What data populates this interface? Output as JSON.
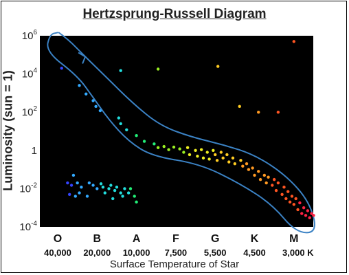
{
  "chart_data": {
    "type": "scatter",
    "title": "Hertzsprung-Russell Diagram",
    "xlabel": "Surface Temperature of Star",
    "ylabel": "Luminosity (sun = 1)",
    "y_scale": "log",
    "ylim": [
      0.0001,
      1000000
    ],
    "y_ticks": [
      {
        "value": 1000000,
        "base": "10",
        "exp": "6"
      },
      {
        "value": 10000,
        "base": "10",
        "exp": "4"
      },
      {
        "value": 100,
        "base": "10",
        "exp": "2"
      },
      {
        "value": 1,
        "base": "1",
        "exp": ""
      },
      {
        "value": 0.01,
        "base": "10",
        "exp": "-2"
      },
      {
        "value": 0.0001,
        "base": "10",
        "exp": "-4"
      }
    ],
    "spectral_classes": [
      {
        "label": "O",
        "temp": "40,000"
      },
      {
        "label": "B",
        "temp": "20,000"
      },
      {
        "label": "A",
        "temp": "10,000"
      },
      {
        "label": "F",
        "temp": "7,500"
      },
      {
        "label": "G",
        "temp": "5,500"
      },
      {
        "label": "K",
        "temp": "4,500"
      },
      {
        "label": "M",
        "temp": "3,000 K"
      }
    ],
    "class_scale": "spectral class position: O=0, B=1, A=2, F=3, G=4, K=5, M=6",
    "colors": {
      "background": "#000000",
      "outline": "#3b82c4",
      "star_palette": [
        "#3344ff",
        "#33aaff",
        "#22dddd",
        "#22ee77",
        "#99ee22",
        "#eeee22",
        "#ffcc22",
        "#ff9922",
        "#ff5522",
        "#ff2244"
      ]
    },
    "series": [
      {
        "group": "main sequence",
        "points": [
          [
            0.1,
            20000
          ],
          [
            0.55,
            2500
          ],
          [
            0.72,
            900
          ],
          [
            0.9,
            400
          ],
          [
            0.97,
            200
          ],
          [
            1.08,
            120
          ],
          [
            1.55,
            50
          ],
          [
            1.6,
            25
          ],
          [
            1.75,
            12
          ],
          [
            2.0,
            6
          ],
          [
            2.2,
            3
          ],
          [
            2.45,
            2.2
          ],
          [
            2.55,
            1.4
          ],
          [
            2.7,
            1.6
          ],
          [
            2.82,
            1.1
          ],
          [
            2.95,
            1.5
          ],
          [
            3.1,
            1.2
          ],
          [
            3.2,
            0.8
          ],
          [
            3.3,
            1.4
          ],
          [
            3.35,
            0.6
          ],
          [
            3.5,
            1.0
          ],
          [
            3.55,
            0.5
          ],
          [
            3.65,
            1.1
          ],
          [
            3.7,
            0.4
          ],
          [
            3.8,
            0.8
          ],
          [
            3.85,
            0.35
          ],
          [
            3.95,
            1.0
          ],
          [
            4.0,
            0.6
          ],
          [
            4.05,
            0.3
          ],
          [
            4.15,
            0.8
          ],
          [
            4.2,
            0.4
          ],
          [
            4.3,
            0.6
          ],
          [
            4.35,
            0.25
          ],
          [
            4.45,
            0.4
          ],
          [
            4.5,
            0.2
          ],
          [
            4.65,
            0.3
          ],
          [
            4.7,
            0.15
          ],
          [
            4.8,
            0.2
          ],
          [
            4.85,
            0.1
          ],
          [
            4.95,
            0.12
          ],
          [
            5.0,
            0.05
          ],
          [
            5.1,
            0.08
          ],
          [
            5.15,
            0.03
          ],
          [
            5.25,
            0.05
          ],
          [
            5.3,
            0.02
          ],
          [
            5.35,
            0.04
          ],
          [
            5.45,
            0.015
          ],
          [
            5.5,
            0.03
          ],
          [
            5.55,
            0.008
          ],
          [
            5.6,
            0.02
          ],
          [
            5.7,
            0.005
          ],
          [
            5.75,
            0.012
          ],
          [
            5.8,
            0.003
          ],
          [
            5.85,
            0.007
          ],
          [
            5.9,
            0.002
          ],
          [
            5.95,
            0.004
          ],
          [
            6.0,
            0.0015
          ],
          [
            6.05,
            0.003
          ],
          [
            6.1,
            0.0008
          ],
          [
            6.15,
            0.0018
          ],
          [
            6.2,
            0.0005
          ],
          [
            6.25,
            0.001
          ],
          [
            6.3,
            0.0004
          ],
          [
            6.35,
            0.0007
          ],
          [
            6.4,
            0.0003
          ],
          [
            6.45,
            0.0005
          ],
          [
            6.5,
            0.0004
          ]
        ]
      },
      {
        "group": "giants and supergiants",
        "points": [
          [
            1.6,
            15000
          ],
          [
            2.55,
            18000
          ],
          [
            4.07,
            25000
          ],
          [
            4.62,
            200
          ],
          [
            5.1,
            100
          ],
          [
            5.6,
            100
          ],
          [
            6.0,
            500000
          ]
        ]
      },
      {
        "group": "white dwarfs",
        "points": [
          [
            0.4,
            0.05
          ],
          [
            0.25,
            0.02
          ],
          [
            0.35,
            0.015
          ],
          [
            0.5,
            0.02
          ],
          [
            0.6,
            0.012
          ],
          [
            0.3,
            0.005
          ],
          [
            0.45,
            0.004
          ],
          [
            0.55,
            0.006
          ],
          [
            0.8,
            0.02
          ],
          [
            0.9,
            0.015
          ],
          [
            1.0,
            0.01
          ],
          [
            1.1,
            0.018
          ],
          [
            0.75,
            0.004
          ],
          [
            1.15,
            0.012
          ],
          [
            1.2,
            0.006
          ],
          [
            1.3,
            0.01
          ],
          [
            1.35,
            0.015
          ],
          [
            1.45,
            0.008
          ],
          [
            1.4,
            0.003
          ],
          [
            1.5,
            0.012
          ],
          [
            1.6,
            0.006
          ],
          [
            1.7,
            0.01
          ],
          [
            1.65,
            0.004
          ],
          [
            1.8,
            0.006
          ],
          [
            1.95,
            0.004
          ],
          [
            1.85,
            0.01
          ],
          [
            2.0,
            0.002
          ]
        ]
      }
    ],
    "annotations": [
      "Main-sequence outline (blue hand-drawn loop)"
    ]
  }
}
